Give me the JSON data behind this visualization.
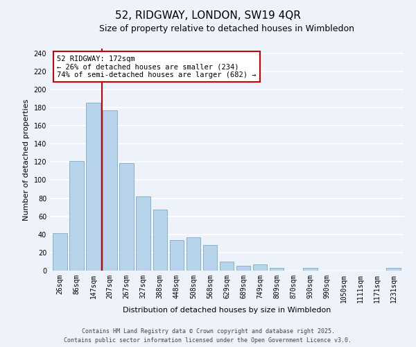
{
  "title": "52, RIDGWAY, LONDON, SW19 4QR",
  "subtitle": "Size of property relative to detached houses in Wimbledon",
  "xlabel": "Distribution of detached houses by size in Wimbledon",
  "ylabel": "Number of detached properties",
  "categories": [
    "26sqm",
    "86sqm",
    "147sqm",
    "207sqm",
    "267sqm",
    "327sqm",
    "388sqm",
    "448sqm",
    "508sqm",
    "568sqm",
    "629sqm",
    "689sqm",
    "749sqm",
    "809sqm",
    "870sqm",
    "930sqm",
    "990sqm",
    "1050sqm",
    "1111sqm",
    "1171sqm",
    "1231sqm"
  ],
  "values": [
    41,
    121,
    185,
    177,
    119,
    82,
    67,
    34,
    37,
    28,
    10,
    5,
    7,
    3,
    0,
    3,
    0,
    0,
    0,
    0,
    3
  ],
  "bar_color": "#b8d4ea",
  "bar_edge_color": "#8ab0cc",
  "marker_line_color": "#cc0000",
  "annotation_text": "52 RIDGWAY: 172sqm\n← 26% of detached houses are smaller (234)\n74% of semi-detached houses are larger (682) →",
  "annotation_box_color": "#ffffff",
  "annotation_box_edge_color": "#cc0000",
  "ylim": [
    0,
    245
  ],
  "yticks": [
    0,
    20,
    40,
    60,
    80,
    100,
    120,
    140,
    160,
    180,
    200,
    220,
    240
  ],
  "footer_line1": "Contains HM Land Registry data © Crown copyright and database right 2025.",
  "footer_line2": "Contains public sector information licensed under the Open Government Licence v3.0.",
  "bg_color": "#eef2fb",
  "grid_color": "#ffffff",
  "title_fontsize": 11,
  "subtitle_fontsize": 9,
  "axis_label_fontsize": 8,
  "tick_fontsize": 7,
  "annotation_fontsize": 7.5,
  "footer_fontsize": 6
}
